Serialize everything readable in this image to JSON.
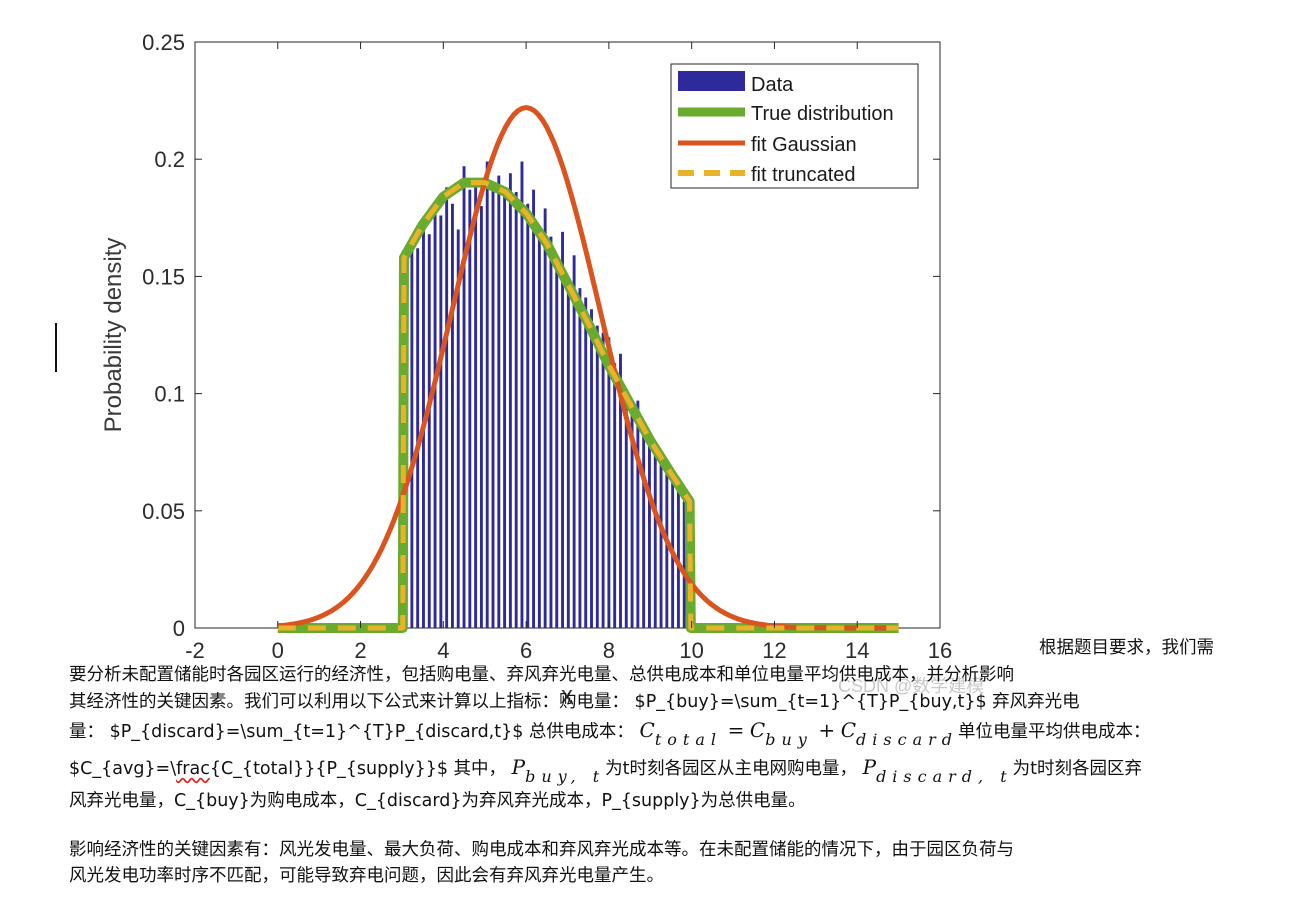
{
  "chart_data": {
    "type": "bar",
    "ylabel": "Probability density",
    "xlabel": "x",
    "xlim": [
      -2,
      16
    ],
    "ylim": [
      0,
      0.25
    ],
    "xticks": [
      "-2",
      "0",
      "2",
      "4",
      "6",
      "8",
      "10",
      "12",
      "14",
      "16"
    ],
    "yticks": [
      "0",
      "0.05",
      "0.1",
      "0.15",
      "0.2",
      "0.25"
    ],
    "grid": false,
    "legend_position": "top-right",
    "legend": [
      {
        "label": "Data",
        "style": "bar",
        "color": "#2e2a9c"
      },
      {
        "label": "True distribution",
        "style": "solid",
        "color": "#6aaa2f"
      },
      {
        "label": "fit Gaussian",
        "style": "solid",
        "color": "#d9541e"
      },
      {
        "label": "fit truncated",
        "style": "dashed",
        "color": "#e8b32a"
      }
    ],
    "histogram": {
      "bin_width": 0.14,
      "x": [
        3.1,
        3.24,
        3.38,
        3.52,
        3.66,
        3.8,
        3.94,
        4.08,
        4.22,
        4.36,
        4.5,
        4.64,
        4.78,
        4.92,
        5.06,
        5.2,
        5.34,
        5.48,
        5.62,
        5.76,
        5.9,
        6.04,
        6.18,
        6.32,
        6.46,
        6.6,
        6.74,
        6.88,
        7.02,
        7.16,
        7.3,
        7.44,
        7.58,
        7.72,
        7.86,
        8.0,
        8.14,
        8.28,
        8.42,
        8.56,
        8.7,
        8.84,
        8.98,
        9.12,
        9.26,
        9.4,
        9.54,
        9.68,
        9.82
      ],
      "values": [
        0.16,
        0.166,
        0.162,
        0.172,
        0.168,
        0.178,
        0.176,
        0.188,
        0.181,
        0.17,
        0.197,
        0.187,
        0.192,
        0.18,
        0.199,
        0.189,
        0.193,
        0.187,
        0.194,
        0.186,
        0.199,
        0.181,
        0.187,
        0.17,
        0.179,
        0.167,
        0.157,
        0.169,
        0.148,
        0.159,
        0.145,
        0.141,
        0.136,
        0.129,
        0.126,
        0.124,
        0.113,
        0.117,
        0.101,
        0.097,
        0.097,
        0.086,
        0.081,
        0.078,
        0.072,
        0.07,
        0.062,
        0.061,
        0.054
      ]
    },
    "series": [
      {
        "name": "True distribution",
        "x": [
          0,
          3.02,
          3.05,
          3.5,
          4.0,
          4.5,
          5.0,
          5.5,
          6.0,
          6.5,
          7.0,
          7.5,
          8.0,
          8.5,
          9.0,
          9.5,
          9.95,
          9.98,
          15
        ],
        "y": [
          0,
          0,
          0.158,
          0.172,
          0.184,
          0.19,
          0.19,
          0.186,
          0.177,
          0.164,
          0.147,
          0.13,
          0.112,
          0.096,
          0.08,
          0.066,
          0.054,
          0,
          0
        ]
      },
      {
        "name": "fit Gaussian",
        "mean": 6.0,
        "std": 1.8,
        "range": [
          0,
          15
        ],
        "peak": 0.222
      },
      {
        "name": "fit truncated",
        "x": [
          0,
          3.02,
          3.05,
          3.5,
          4.0,
          4.5,
          5.0,
          5.5,
          6.0,
          6.5,
          7.0,
          7.5,
          8.0,
          8.5,
          9.0,
          9.5,
          9.95,
          9.98,
          15
        ],
        "y": [
          0,
          0,
          0.158,
          0.172,
          0.184,
          0.19,
          0.19,
          0.186,
          0.177,
          0.164,
          0.147,
          0.13,
          0.112,
          0.096,
          0.08,
          0.066,
          0.054,
          0,
          0
        ]
      }
    ]
  },
  "watermark": "CSDN @数学建模",
  "text": {
    "line1": "根据题目要求，我们需",
    "line2": "要分析未配置储能时各园区运行的经济性，包括购电量、弃风弃光电量、总供电成本和单位电量平均供电成本，并分析影响",
    "line3": "其经济性的关键因素。我们可以利用以下公式来计算以上指标：购电量： $P_{buy}=\\sum_{t=1}^{T}P_{buy,t}$ 弃风弃光电",
    "line4_a": "量： $P_{discard}=\\sum_{t=1}^{T}P_{discard,t}$ 总供电成本：",
    "line4_c_total": "C",
    "line4_total_sub": "total",
    "line4_eq": "=",
    "line4_c_buy": "C",
    "line4_buy_sub": "buy",
    "line4_plus": "+",
    "line4_c_discard": "C",
    "line4_discard_sub": "discard",
    "line4_b": "单位电量平均供电成本：",
    "line5_a": "$C_{avg}=\\",
    "line5_frac": "frac",
    "line5_b": "{C_{total}}{P_{supply}}$ 其中，",
    "line5_p_buy": "P",
    "line5_p_buy_sub": "buy, t",
    "line5_c": "为t时刻各园区从主电网购电量，",
    "line5_p_discard": "P",
    "line5_p_discard_sub": "discard, t",
    "line5_d": "为t时刻各园区弃",
    "line6": "风弃光电量，C_{buy}为购电成本，C_{discard}为弃风弃光成本，P_{supply}为总供电量。",
    "para2_line1": "影响经济性的关键因素有：风光发电量、最大负荷、购电成本和弃风弃光成本等。在未配置储能的情况下，由于园区负荷与",
    "para2_line2": "风光发电功率时序不匹配，可能导致弃电问题，因此会有弃风弃光电量产生。"
  }
}
